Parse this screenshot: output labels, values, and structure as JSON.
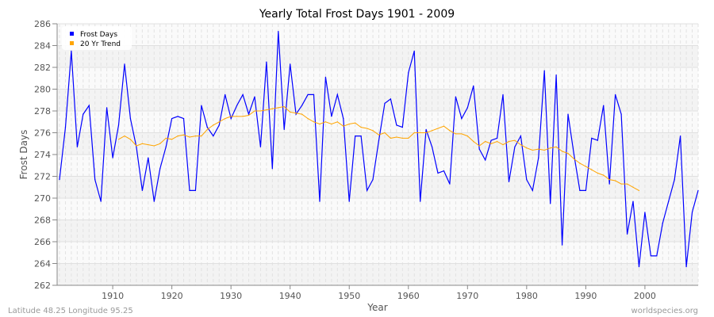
{
  "chart_data": {
    "type": "line",
    "title": "Yearly Total Frost Days 1901 - 2009",
    "xlabel": "Year",
    "ylabel": "Frost Days",
    "xlim": [
      1901,
      2009
    ],
    "ylim": [
      262,
      286
    ],
    "xticks": [
      1910,
      1920,
      1930,
      1940,
      1950,
      1960,
      1970,
      1980,
      1990,
      2000
    ],
    "yticks": [
      262,
      264,
      266,
      268,
      270,
      272,
      274,
      276,
      278,
      280,
      282,
      284,
      286
    ],
    "grid": true,
    "legend_placement": "top-left",
    "series": [
      {
        "name": "Frost Days",
        "color": "#0000ff",
        "start_year": 1901,
        "values": [
          271.7,
          276.5,
          283.5,
          274.7,
          277.7,
          278.5,
          271.7,
          269.7,
          278.3,
          273.7,
          276.7,
          282.3,
          277.3,
          274.7,
          270.7,
          273.7,
          269.7,
          272.7,
          274.7,
          277.3,
          277.5,
          277.3,
          270.7,
          270.7,
          278.5,
          276.5,
          275.7,
          276.7,
          279.5,
          277.3,
          278.5,
          279.5,
          277.7,
          279.3,
          274.7,
          282.5,
          272.7,
          285.3,
          276.3,
          282.3,
          277.7,
          278.5,
          279.5,
          279.5,
          269.7,
          281.1,
          277.5,
          279.5,
          277.3,
          269.7,
          275.7,
          275.7,
          270.7,
          271.7,
          275.3,
          278.7,
          279.1,
          276.7,
          276.5,
          281.5,
          283.5,
          269.7,
          276.3,
          274.7,
          272.3,
          272.5,
          271.3,
          279.3,
          277.3,
          278.3,
          280.3,
          274.5,
          273.5,
          275.3,
          275.5,
          279.5,
          271.5,
          274.7,
          275.7,
          271.7,
          270.7,
          273.7,
          281.7,
          269.5,
          281.3,
          265.7,
          277.7,
          274.0,
          270.7,
          270.7,
          275.5,
          275.3,
          278.5,
          271.3,
          279.5,
          277.7,
          266.7,
          269.7,
          263.7,
          268.7,
          264.7,
          264.7,
          267.7,
          269.7,
          271.7,
          275.7,
          263.7,
          268.7,
          270.7
        ]
      },
      {
        "name": "20 Yr Trend",
        "color": "#ffa500",
        "start_year": 1911,
        "values": [
          275.4,
          275.7,
          275.4,
          274.8,
          275.0,
          274.9,
          274.8,
          275.0,
          275.5,
          275.4,
          275.7,
          275.8,
          275.6,
          275.7,
          275.7,
          276.3,
          276.7,
          277.0,
          277.3,
          277.5,
          277.5,
          277.5,
          277.6,
          278.0,
          278.0,
          278.1,
          278.2,
          278.3,
          278.4,
          277.9,
          277.8,
          277.7,
          277.3,
          277.0,
          276.8,
          277.0,
          276.8,
          277.0,
          276.6,
          276.8,
          276.9,
          276.5,
          276.4,
          276.2,
          275.8,
          276.0,
          275.5,
          275.6,
          275.5,
          275.5,
          276.0,
          276.0,
          276.0,
          276.2,
          276.4,
          276.6,
          276.2,
          275.9,
          275.9,
          275.7,
          275.2,
          274.8,
          275.2,
          275.0,
          275.2,
          274.9,
          275.2,
          275.3,
          274.9,
          274.6,
          274.4,
          274.5,
          274.4,
          274.6,
          274.7,
          274.3,
          274.1,
          273.6,
          273.2,
          272.9,
          272.6,
          272.3,
          272.1,
          271.7,
          271.6,
          271.3,
          271.3,
          271.0,
          270.7
        ]
      }
    ]
  },
  "footer": {
    "location": "Latitude 48.25 Longitude 95.25",
    "source": "worldspecies.org"
  }
}
